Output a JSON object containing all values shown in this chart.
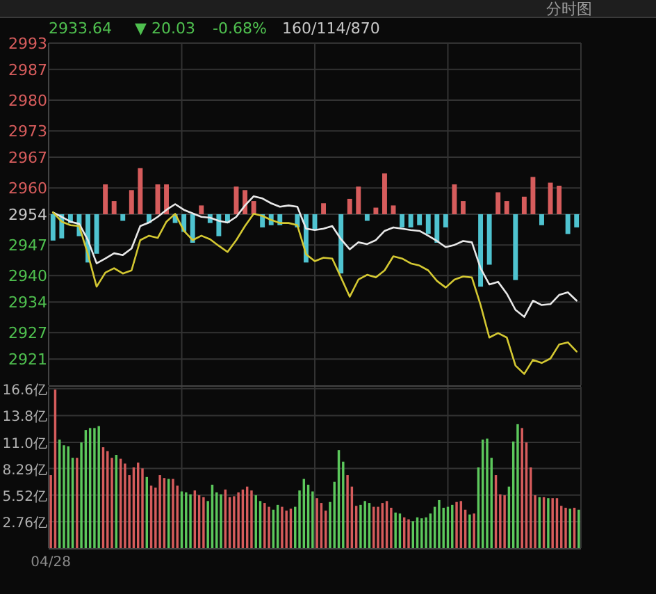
{
  "chart_data": [
    {
      "type": "line",
      "annotations": [
        "分时图",
        "2933.64",
        "▼ 20.03",
        "-0.68%",
        "160/114/870"
      ],
      "grid": true,
      "tick_labels": "y",
      "ylim": [
        2915,
        2993
      ],
      "yticks": [
        2993,
        2987,
        2980,
        2973,
        2967,
        2960,
        2954,
        2947,
        2940,
        2934,
        2927,
        2921
      ],
      "categories": [
        null,
        null,
        null,
        null,
        null,
        null,
        null,
        null,
        null,
        null,
        null,
        null,
        null,
        null,
        null,
        null,
        null,
        null,
        null,
        null,
        null,
        null,
        null,
        null,
        null,
        null,
        null,
        null,
        null,
        null,
        null,
        null,
        null,
        null,
        null,
        null,
        null,
        null,
        null,
        null,
        null,
        null,
        null,
        null,
        null,
        null,
        null,
        null,
        null,
        null,
        null,
        null,
        null,
        null,
        null,
        null,
        null,
        null,
        null,
        null,
        null
      ],
      "series": [
        {
          "type": "bar",
          "base": [
            2954,
            2954,
            2954,
            2954,
            2954,
            2954,
            2954,
            2954,
            2954,
            2954,
            2954,
            2954,
            2954,
            2954,
            2954,
            2954,
            2954,
            2954,
            2954,
            2954,
            2954,
            2954,
            2954,
            2954,
            2954,
            2954,
            2954,
            null,
            2954,
            2954,
            2954,
            2954,
            null,
            2954,
            2954,
            2954,
            2954,
            2954,
            2954,
            2954,
            2954,
            2954,
            2954,
            2954,
            2954,
            2954,
            2954,
            2954,
            null,
            2954,
            2954,
            2954,
            2954,
            2954,
            2954,
            2954,
            2954,
            2954,
            2954,
            2954,
            2954
          ],
          "values": [
            -6,
            -5.5,
            -2,
            -5,
            -11,
            -9,
            6.8,
            3,
            -1.5,
            5.5,
            10.5,
            -2,
            6.8,
            6.8,
            -2,
            -4,
            -6.5,
            2,
            -2,
            -5,
            -2,
            6.3,
            5.5,
            3,
            -3,
            -2.5,
            -2.5,
            null,
            -3,
            -11,
            -3.5,
            2.5,
            null,
            -13.5,
            3.5,
            6.3,
            -1.5,
            1.5,
            9.3,
            2,
            -3,
            -3,
            -2.5,
            -4.5,
            -6.5,
            -3,
            6.8,
            3,
            null,
            -16.5,
            -11.5,
            5,
            3,
            -15,
            4,
            8.5,
            -2.5,
            7.2,
            6.5,
            -4.5,
            -3
          ],
          "colors": [
            "#4fc3d0",
            "#4fc3d0",
            "#4fc3d0",
            "#4fc3d0",
            "#4fc3d0",
            "#4fc3d0",
            "#d65c5c",
            "#d65c5c",
            "#4fc3d0",
            "#d65c5c",
            "#d65c5c",
            "#4fc3d0",
            "#d65c5c",
            "#d65c5c",
            "#4fc3d0",
            "#4fc3d0",
            "#4fc3d0",
            "#d65c5c",
            "#4fc3d0",
            "#4fc3d0",
            "#4fc3d0",
            "#d65c5c",
            "#d65c5c",
            "#d65c5c",
            "#4fc3d0",
            "#4fc3d0",
            "#4fc3d0",
            null,
            "#4fc3d0",
            "#4fc3d0",
            "#4fc3d0",
            "#d65c5c",
            null,
            "#4fc3d0",
            "#d65c5c",
            "#d65c5c",
            "#4fc3d0",
            "#d65c5c",
            "#d65c5c",
            "#d65c5c",
            "#4fc3d0",
            "#4fc3d0",
            "#4fc3d0",
            "#4fc3d0",
            "#4fc3d0",
            "#4fc3d0",
            "#d65c5c",
            "#d65c5c",
            null,
            "#4fc3d0",
            "#4fc3d0",
            "#d65c5c",
            "#d65c5c",
            "#4fc3d0",
            "#d65c5c",
            "#d65c5c",
            "#4fc3d0",
            "#d65c5c",
            "#d65c5c",
            "#4fc3d0",
            "#4fc3d0"
          ]
        },
        {
          "color": "#e8e8e8",
          "values": [
            2954.4,
            2953.4,
            2952.3,
            2951.8,
            2948.1,
            2942.8,
            2943.9,
            2945.1,
            2944.7,
            2946.2,
            2951.3,
            2952.1,
            2953.4,
            2955.0,
            2956.3,
            2955.0,
            2954.2,
            2953.4,
            2953.2,
            2952.5,
            2952.1,
            2953.4,
            2956.0,
            2958.1,
            2957.6,
            2956.5,
            2955.7,
            2956.0,
            2955.7,
            2950.7,
            2950.4,
            2950.7,
            2951.3,
            2948.3,
            2946.0,
            2947.6,
            2947.2,
            2948.1,
            2950.2,
            2951.0,
            2950.7,
            2950.4,
            2950.2,
            2949.1,
            2947.9,
            2946.5,
            2947.0,
            2947.9,
            2947.6,
            2941.7,
            2938.0,
            2938.6,
            2935.9,
            2932.2,
            2930.6,
            2934.3,
            2933.3,
            2933.5,
            2935.6,
            2936.2,
            2934.3
          ]
        },
        {
          "color": "#d4c832",
          "values": [
            2954.4,
            2952.3,
            2951.5,
            2951.3,
            2944.9,
            2937.5,
            2940.7,
            2941.7,
            2940.5,
            2941.2,
            2948.1,
            2949.1,
            2948.6,
            2952.3,
            2954.1,
            2950.2,
            2948.1,
            2949.1,
            2948.3,
            2946.8,
            2945.4,
            2948.1,
            2951.3,
            2954.1,
            2953.6,
            2952.7,
            2952.0,
            2952.0,
            2951.5,
            2944.9,
            2943.3,
            2944.1,
            2943.9,
            2939.6,
            2935.2,
            2939.1,
            2940.2,
            2939.6,
            2941.2,
            2944.4,
            2943.9,
            2942.8,
            2942.3,
            2941.2,
            2938.8,
            2937.3,
            2939.1,
            2939.8,
            2939.6,
            2933.3,
            2925.9,
            2926.9,
            2925.9,
            2919.5,
            2917.6,
            2920.8,
            2920.1,
            2921.1,
            2924.3,
            2924.8,
            2922.7
          ]
        }
      ]
    },
    {
      "type": "bar",
      "grid": true,
      "ylim": [
        0,
        16.8
      ],
      "yticks": [
        {
          "value": 2.76,
          "label": "2.76亿"
        },
        {
          "value": 5.52,
          "label": "5.52亿"
        },
        {
          "value": 8.29,
          "label": "8.29亿"
        },
        {
          "value": 11.0,
          "label": "11.0亿"
        },
        {
          "value": 13.8,
          "label": "13.8亿"
        },
        {
          "value": 16.6,
          "label": "16.6亿"
        }
      ],
      "categories": [
        "04/28",
        null,
        null,
        null,
        null,
        null,
        null,
        null,
        null,
        null,
        null,
        null,
        null,
        null,
        null,
        null,
        null,
        null,
        null,
        null,
        null,
        null,
        null,
        null,
        null,
        null,
        null,
        null,
        null,
        null,
        null,
        null,
        null,
        null,
        null,
        null,
        null,
        null,
        null,
        null,
        null,
        null,
        null,
        null,
        null,
        null,
        null,
        null,
        null,
        null,
        null,
        null,
        null,
        null,
        null,
        null,
        null,
        null,
        null,
        null,
        null,
        null,
        null,
        null,
        null,
        null,
        null,
        null,
        null,
        null,
        null,
        null,
        null,
        null,
        null,
        null,
        null,
        null,
        null,
        null,
        null,
        null,
        null,
        null,
        null,
        null,
        null,
        null,
        null,
        null,
        null,
        null,
        null,
        null,
        null,
        null,
        null,
        null,
        null,
        null,
        null,
        null,
        null,
        null,
        null,
        null,
        null,
        null,
        null,
        null,
        null,
        null,
        null,
        null,
        null,
        null,
        null,
        null,
        null,
        null,
        null,
        null
      ],
      "values": [
        7.6,
        16.5,
        11.3,
        10.7,
        10.6,
        9.4,
        9.4,
        11.0,
        12.3,
        12.5,
        12.5,
        12.7,
        10.5,
        10.1,
        9.4,
        9.7,
        9.3,
        8.8,
        7.6,
        8.4,
        8.9,
        8.3,
        7.4,
        6.5,
        6.3,
        7.6,
        7.3,
        7.2,
        7.2,
        6.5,
        5.9,
        5.8,
        5.6,
        6.0,
        5.5,
        5.3,
        4.9,
        6.6,
        5.8,
        5.6,
        6.1,
        5.3,
        5.4,
        5.8,
        6.1,
        6.4,
        6.0,
        5.5,
        4.9,
        4.7,
        4.3,
        4.0,
        4.5,
        4.3,
        3.9,
        4.1,
        4.3,
        6.0,
        7.2,
        6.6,
        5.9,
        5.2,
        4.7,
        3.9,
        4.8,
        6.9,
        10.2,
        9.0,
        7.6,
        6.4,
        4.4,
        4.5,
        4.9,
        4.7,
        4.3,
        4.3,
        4.7,
        4.9,
        4.2,
        3.7,
        3.6,
        3.2,
        3.0,
        2.8,
        3.2,
        3.1,
        3.2,
        3.6,
        4.3,
        5.0,
        4.2,
        4.3,
        4.5,
        4.8,
        4.9,
        4.0,
        3.5,
        3.6,
        8.4,
        11.3,
        11.4,
        9.4,
        7.6,
        5.6,
        5.5,
        6.4,
        11.1,
        12.9,
        12.5,
        11.0,
        8.4,
        5.5,
        5.3,
        5.3,
        5.2,
        5.2,
        5.2,
        4.4,
        4.2,
        4.1,
        4.2,
        4.0
      ],
      "colors": [
        "#d65c5c",
        "#d65c5c",
        "#5cc85c",
        "#5cc85c",
        "#5cc85c",
        "#5cc85c",
        "#d65c5c",
        "#5cc85c",
        "#5cc85c",
        "#5cc85c",
        "#5cc85c",
        "#5cc85c",
        "#d65c5c",
        "#d65c5c",
        "#d65c5c",
        "#5cc85c",
        "#d65c5c",
        "#d65c5c",
        "#d65c5c",
        "#d65c5c",
        "#d65c5c",
        "#d65c5c",
        "#5cc85c",
        "#d65c5c",
        "#d65c5c",
        "#d65c5c",
        "#d65c5c",
        "#5cc85c",
        "#d65c5c",
        "#d65c5c",
        "#5cc85c",
        "#5cc85c",
        "#5cc85c",
        "#d65c5c",
        "#d65c5c",
        "#d65c5c",
        "#5cc85c",
        "#5cc85c",
        "#5cc85c",
        "#5cc85c",
        "#d65c5c",
        "#d65c5c",
        "#d65c5c",
        "#d65c5c",
        "#d65c5c",
        "#d65c5c",
        "#d65c5c",
        "#5cc85c",
        "#5cc85c",
        "#d65c5c",
        "#d65c5c",
        "#5cc85c",
        "#5cc85c",
        "#d65c5c",
        "#d65c5c",
        "#d65c5c",
        "#5cc85c",
        "#5cc85c",
        "#5cc85c",
        "#5cc85c",
        "#5cc85c",
        "#d65c5c",
        "#d65c5c",
        "#d65c5c",
        "#5cc85c",
        "#5cc85c",
        "#5cc85c",
        "#5cc85c",
        "#d65c5c",
        "#d65c5c",
        "#d65c5c",
        "#5cc85c",
        "#5cc85c",
        "#5cc85c",
        "#d65c5c",
        "#d65c5c",
        "#d65c5c",
        "#d65c5c",
        "#d65c5c",
        "#5cc85c",
        "#5cc85c",
        "#d65c5c",
        "#d65c5c",
        "#5cc85c",
        "#5cc85c",
        "#5cc85c",
        "#5cc85c",
        "#5cc85c",
        "#5cc85c",
        "#5cc85c",
        "#5cc85c",
        "#5cc85c",
        "#5cc85c",
        "#d65c5c",
        "#d65c5c",
        "#d65c5c",
        "#5cc85c",
        "#d65c5c",
        "#5cc85c",
        "#5cc85c",
        "#5cc85c",
        "#5cc85c",
        "#d65c5c",
        "#d65c5c",
        "#d65c5c",
        "#5cc85c",
        "#5cc85c",
        "#5cc85c",
        "#d65c5c",
        "#d65c5c",
        "#d65c5c",
        "#d65c5c",
        "#5cc85c",
        "#d65c5c",
        "#5cc85c",
        "#d65c5c",
        "#d65c5c",
        "#d65c5c",
        "#d65c5c",
        "#5cc85c",
        "#d65c5c",
        "#5cc85c"
      ]
    }
  ]
}
